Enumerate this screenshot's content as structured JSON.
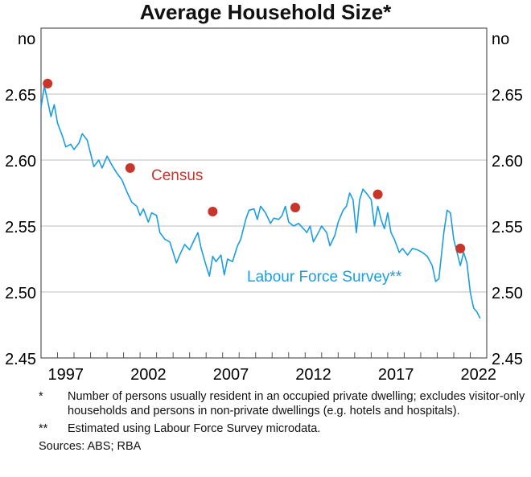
{
  "chart_data": {
    "type": "line",
    "title": "Average Household Size*",
    "ylabel_left": "no",
    "ylabel_right": "no",
    "ylim": [
      2.45,
      2.7
    ],
    "yticks": [
      2.45,
      2.5,
      2.55,
      2.6,
      2.65
    ],
    "ytick_labels": [
      "2.45",
      "2.50",
      "2.55",
      "2.60",
      "2.65"
    ],
    "xlim": [
      1996,
      2023
    ],
    "xtick_labels": [
      "1997",
      "2002",
      "2007",
      "2012",
      "2017",
      "2022"
    ],
    "grid": true,
    "series": [
      {
        "name": "Labour Force Survey**",
        "type": "line",
        "color": "#1a9ee0",
        "x": [
          1996.0,
          1996.2,
          1996.4,
          1996.6,
          1996.8,
          1997.0,
          1997.3,
          1997.5,
          1997.8,
          1998.0,
          1998.3,
          1998.5,
          1998.8,
          1999.0,
          1999.2,
          1999.5,
          1999.7,
          2000.0,
          2000.3,
          2000.6,
          2000.9,
          2001.2,
          2001.5,
          2001.8,
          2002.0,
          2002.2,
          2002.5,
          2002.7,
          2003.0,
          2003.2,
          2003.5,
          2003.8,
          2004.0,
          2004.2,
          2004.4,
          2004.7,
          2005.0,
          2005.3,
          2005.5,
          2005.7,
          2006.0,
          2006.2,
          2006.4,
          2006.6,
          2006.9,
          2007.1,
          2007.3,
          2007.6,
          2007.9,
          2008.1,
          2008.4,
          2008.6,
          2008.9,
          2009.1,
          2009.3,
          2009.6,
          2009.9,
          2010.1,
          2010.4,
          2010.6,
          2010.8,
          2011.0,
          2011.3,
          2011.6,
          2011.9,
          2012.1,
          2012.3,
          2012.5,
          2012.8,
          2013.0,
          2013.3,
          2013.5,
          2013.8,
          2014.0,
          2014.3,
          2014.5,
          2014.7,
          2014.9,
          2015.1,
          2015.3,
          2015.5,
          2015.7,
          2016.0,
          2016.2,
          2016.4,
          2016.6,
          2016.8,
          2017.0,
          2017.2,
          2017.4,
          2017.7,
          2017.9,
          2018.2,
          2018.5,
          2018.8,
          2019.1,
          2019.4,
          2019.7,
          2019.9,
          2020.1,
          2020.4,
          2020.6,
          2020.8,
          2021.0,
          2021.2,
          2021.4,
          2021.6,
          2021.8,
          2022.0,
          2022.2,
          2022.4,
          2022.6
        ],
        "y": [
          2.64,
          2.656,
          2.645,
          2.633,
          2.642,
          2.628,
          2.618,
          2.61,
          2.612,
          2.608,
          2.613,
          2.62,
          2.615,
          2.605,
          2.595,
          2.6,
          2.594,
          2.603,
          2.596,
          2.59,
          2.585,
          2.576,
          2.568,
          2.565,
          2.558,
          2.563,
          2.553,
          2.56,
          2.558,
          2.545,
          2.54,
          2.538,
          2.53,
          2.522,
          2.528,
          2.536,
          2.532,
          2.54,
          2.545,
          2.533,
          2.52,
          2.512,
          2.527,
          2.523,
          2.528,
          2.513,
          2.525,
          2.523,
          2.535,
          2.54,
          2.555,
          2.562,
          2.563,
          2.555,
          2.565,
          2.56,
          2.552,
          2.556,
          2.555,
          2.558,
          2.565,
          2.553,
          2.55,
          2.552,
          2.548,
          2.545,
          2.55,
          2.538,
          2.545,
          2.55,
          2.545,
          2.535,
          2.543,
          2.553,
          2.562,
          2.565,
          2.575,
          2.57,
          2.545,
          2.57,
          2.578,
          2.575,
          2.57,
          2.55,
          2.565,
          2.555,
          2.548,
          2.56,
          2.545,
          2.54,
          2.53,
          2.533,
          2.528,
          2.533,
          2.532,
          2.53,
          2.527,
          2.52,
          2.508,
          2.51,
          2.545,
          2.562,
          2.56,
          2.54,
          2.53,
          2.52,
          2.53,
          2.522,
          2.5,
          2.488,
          2.485,
          2.48
        ]
      },
      {
        "name": "Census",
        "type": "scatter",
        "color": "#c8352b",
        "x": [
          1996.4,
          2001.4,
          2006.4,
          2011.4,
          2016.4,
          2021.4
        ],
        "y": [
          2.658,
          2.594,
          2.561,
          2.564,
          2.574,
          2.533
        ]
      }
    ]
  },
  "footnotes": [
    {
      "mark": "*",
      "text": "Number of persons usually resident in an occupied private dwelling; excludes visitor-only households and persons in non-private dwellings (e.g. hotels and hospitals)."
    },
    {
      "mark": "**",
      "text": "Estimated using Labour Force Survey microdata."
    }
  ],
  "sources": "Sources: ABS; RBA"
}
